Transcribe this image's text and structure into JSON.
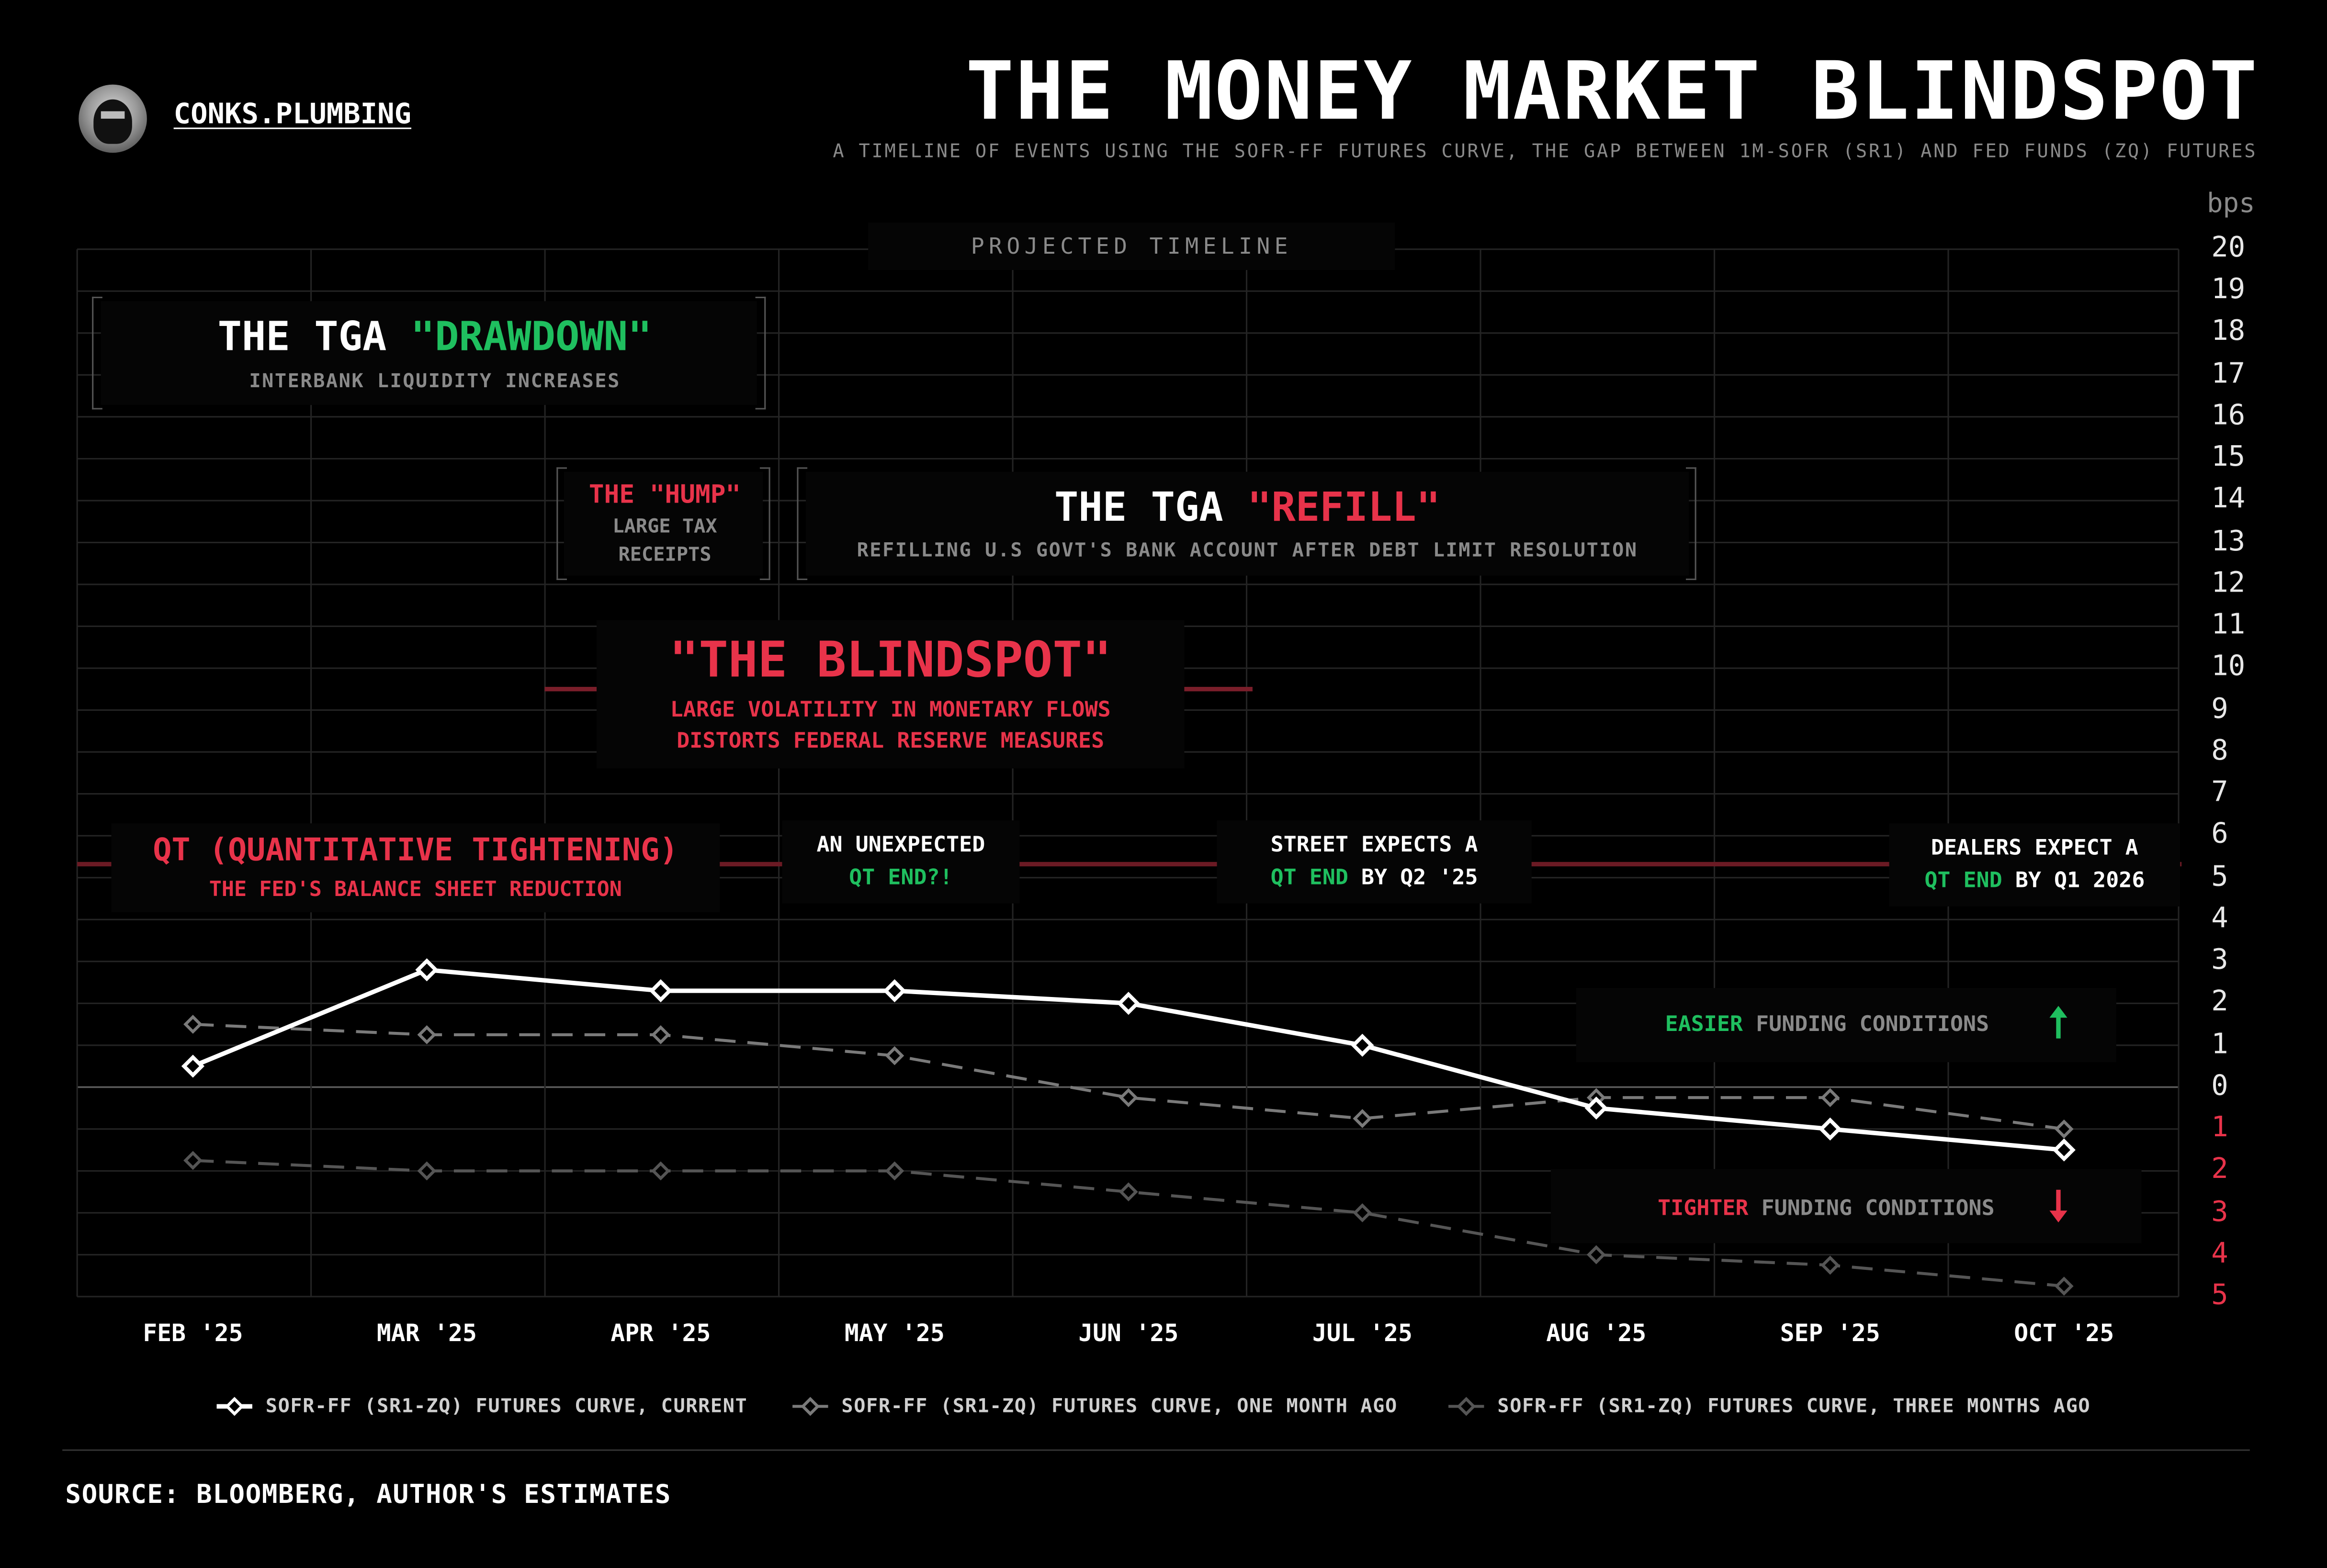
{
  "brand": {
    "name": "CONKS.PLUMBING"
  },
  "header": {
    "title": "THE MONEY MARKET BLINDSPOT",
    "subtitle": "A TIMELINE OF EVENTS USING THE SOFR-FF FUTURES CURVE, THE GAP BETWEEN 1M-SOFR (SR1) AND FED FUNDS (ZQ) FUTURES"
  },
  "annotations": {
    "projected": "PROJECTED TIMELINE",
    "drawdown": {
      "title_a": "THE TGA ",
      "title_b": "\"DRAWDOWN\"",
      "sub": "INTERBANK LIQUIDITY INCREASES"
    },
    "hump": {
      "title": "THE \"HUMP\"",
      "sub1": "LARGE TAX",
      "sub2": "RECEIPTS"
    },
    "refill": {
      "title_a": "THE TGA ",
      "title_b": "\"REFILL\"",
      "sub": "REFILLING U.S GOVT'S BANK ACCOUNT AFTER DEBT LIMIT RESOLUTION"
    },
    "blindspot": {
      "title": "\"THE BLINDSPOT\"",
      "sub1": "LARGE VOLATILITY IN MONETARY FLOWS",
      "sub2": "DISTORTS FEDERAL RESERVE MEASURES"
    },
    "qt": {
      "title": "QT (QUANTITATIVE TIGHTENING)",
      "sub": "THE FED'S BALANCE SHEET REDUCTION"
    },
    "unexpected": {
      "line1": "AN UNEXPECTED",
      "line2": "QT END?!"
    },
    "street": {
      "line1": "STREET EXPECTS A",
      "line2a": "QT END",
      "line2b": " BY Q2 '25"
    },
    "dealers": {
      "line1": "DEALERS EXPECT A",
      "line2a": "QT END",
      "line2b": " BY Q1 2026"
    },
    "easier": {
      "a": "EASIER",
      "b": " FUNDING CONDITIONS"
    },
    "tighter": {
      "a": "TIGHTER",
      "b": " FUNDING CONDITIONS"
    }
  },
  "source": "SOURCE: BLOOMBERG, AUTHOR'S ESTIMATES",
  "colors": {
    "current": "#ffffff",
    "one_month": "#7a7a7a",
    "three_months": "#555555",
    "red": "#e8334a",
    "green": "#1fbf5f"
  },
  "chart_data": {
    "type": "line",
    "categories": [
      "FEB '25",
      "MAR '25",
      "APR '25",
      "MAY '25",
      "JUN '25",
      "JUL '25",
      "AUG '25",
      "SEP '25",
      "OCT '25"
    ],
    "y_unit": "bps",
    "ylim": [
      -5,
      20
    ],
    "y_ticks": [
      20,
      19,
      18,
      17,
      16,
      15,
      14,
      13,
      12,
      11,
      10,
      9,
      8,
      7,
      6,
      5,
      4,
      3,
      2,
      1,
      0,
      -1,
      -2,
      -3,
      -4,
      -5
    ],
    "y_tick_labels": [
      "20",
      "19",
      "18",
      "17",
      "16",
      "15",
      "14",
      "13",
      "12",
      "11",
      "10",
      "9",
      "8",
      "7",
      "6",
      "5",
      "4",
      "3",
      "2",
      "1",
      "0",
      "1",
      "2",
      "3",
      "4",
      "5"
    ],
    "negative_tick_color": "red",
    "grid": true,
    "series": [
      {
        "name": "SOFR-FF (SR1-ZQ) FUTURES CURVE, CURRENT",
        "style": "solid",
        "values": [
          0.5,
          2.8,
          2.3,
          2.3,
          2.0,
          1.0,
          -0.5,
          -1.0,
          -1.5
        ]
      },
      {
        "name": "SOFR-FF (SR1-ZQ) FUTURES CURVE, ONE MONTH AGO",
        "style": "dashed",
        "values": [
          1.5,
          1.25,
          1.25,
          0.75,
          -0.25,
          -0.75,
          -0.25,
          -0.25,
          -1.0
        ]
      },
      {
        "name": "SOFR-FF (SR1-ZQ) FUTURES CURVE, THREE MONTHS AGO",
        "style": "dashed",
        "values": [
          -1.75,
          -2.0,
          -2.0,
          -2.0,
          -2.5,
          -3.0,
          -4.0,
          -4.25,
          -4.75
        ]
      }
    ]
  }
}
